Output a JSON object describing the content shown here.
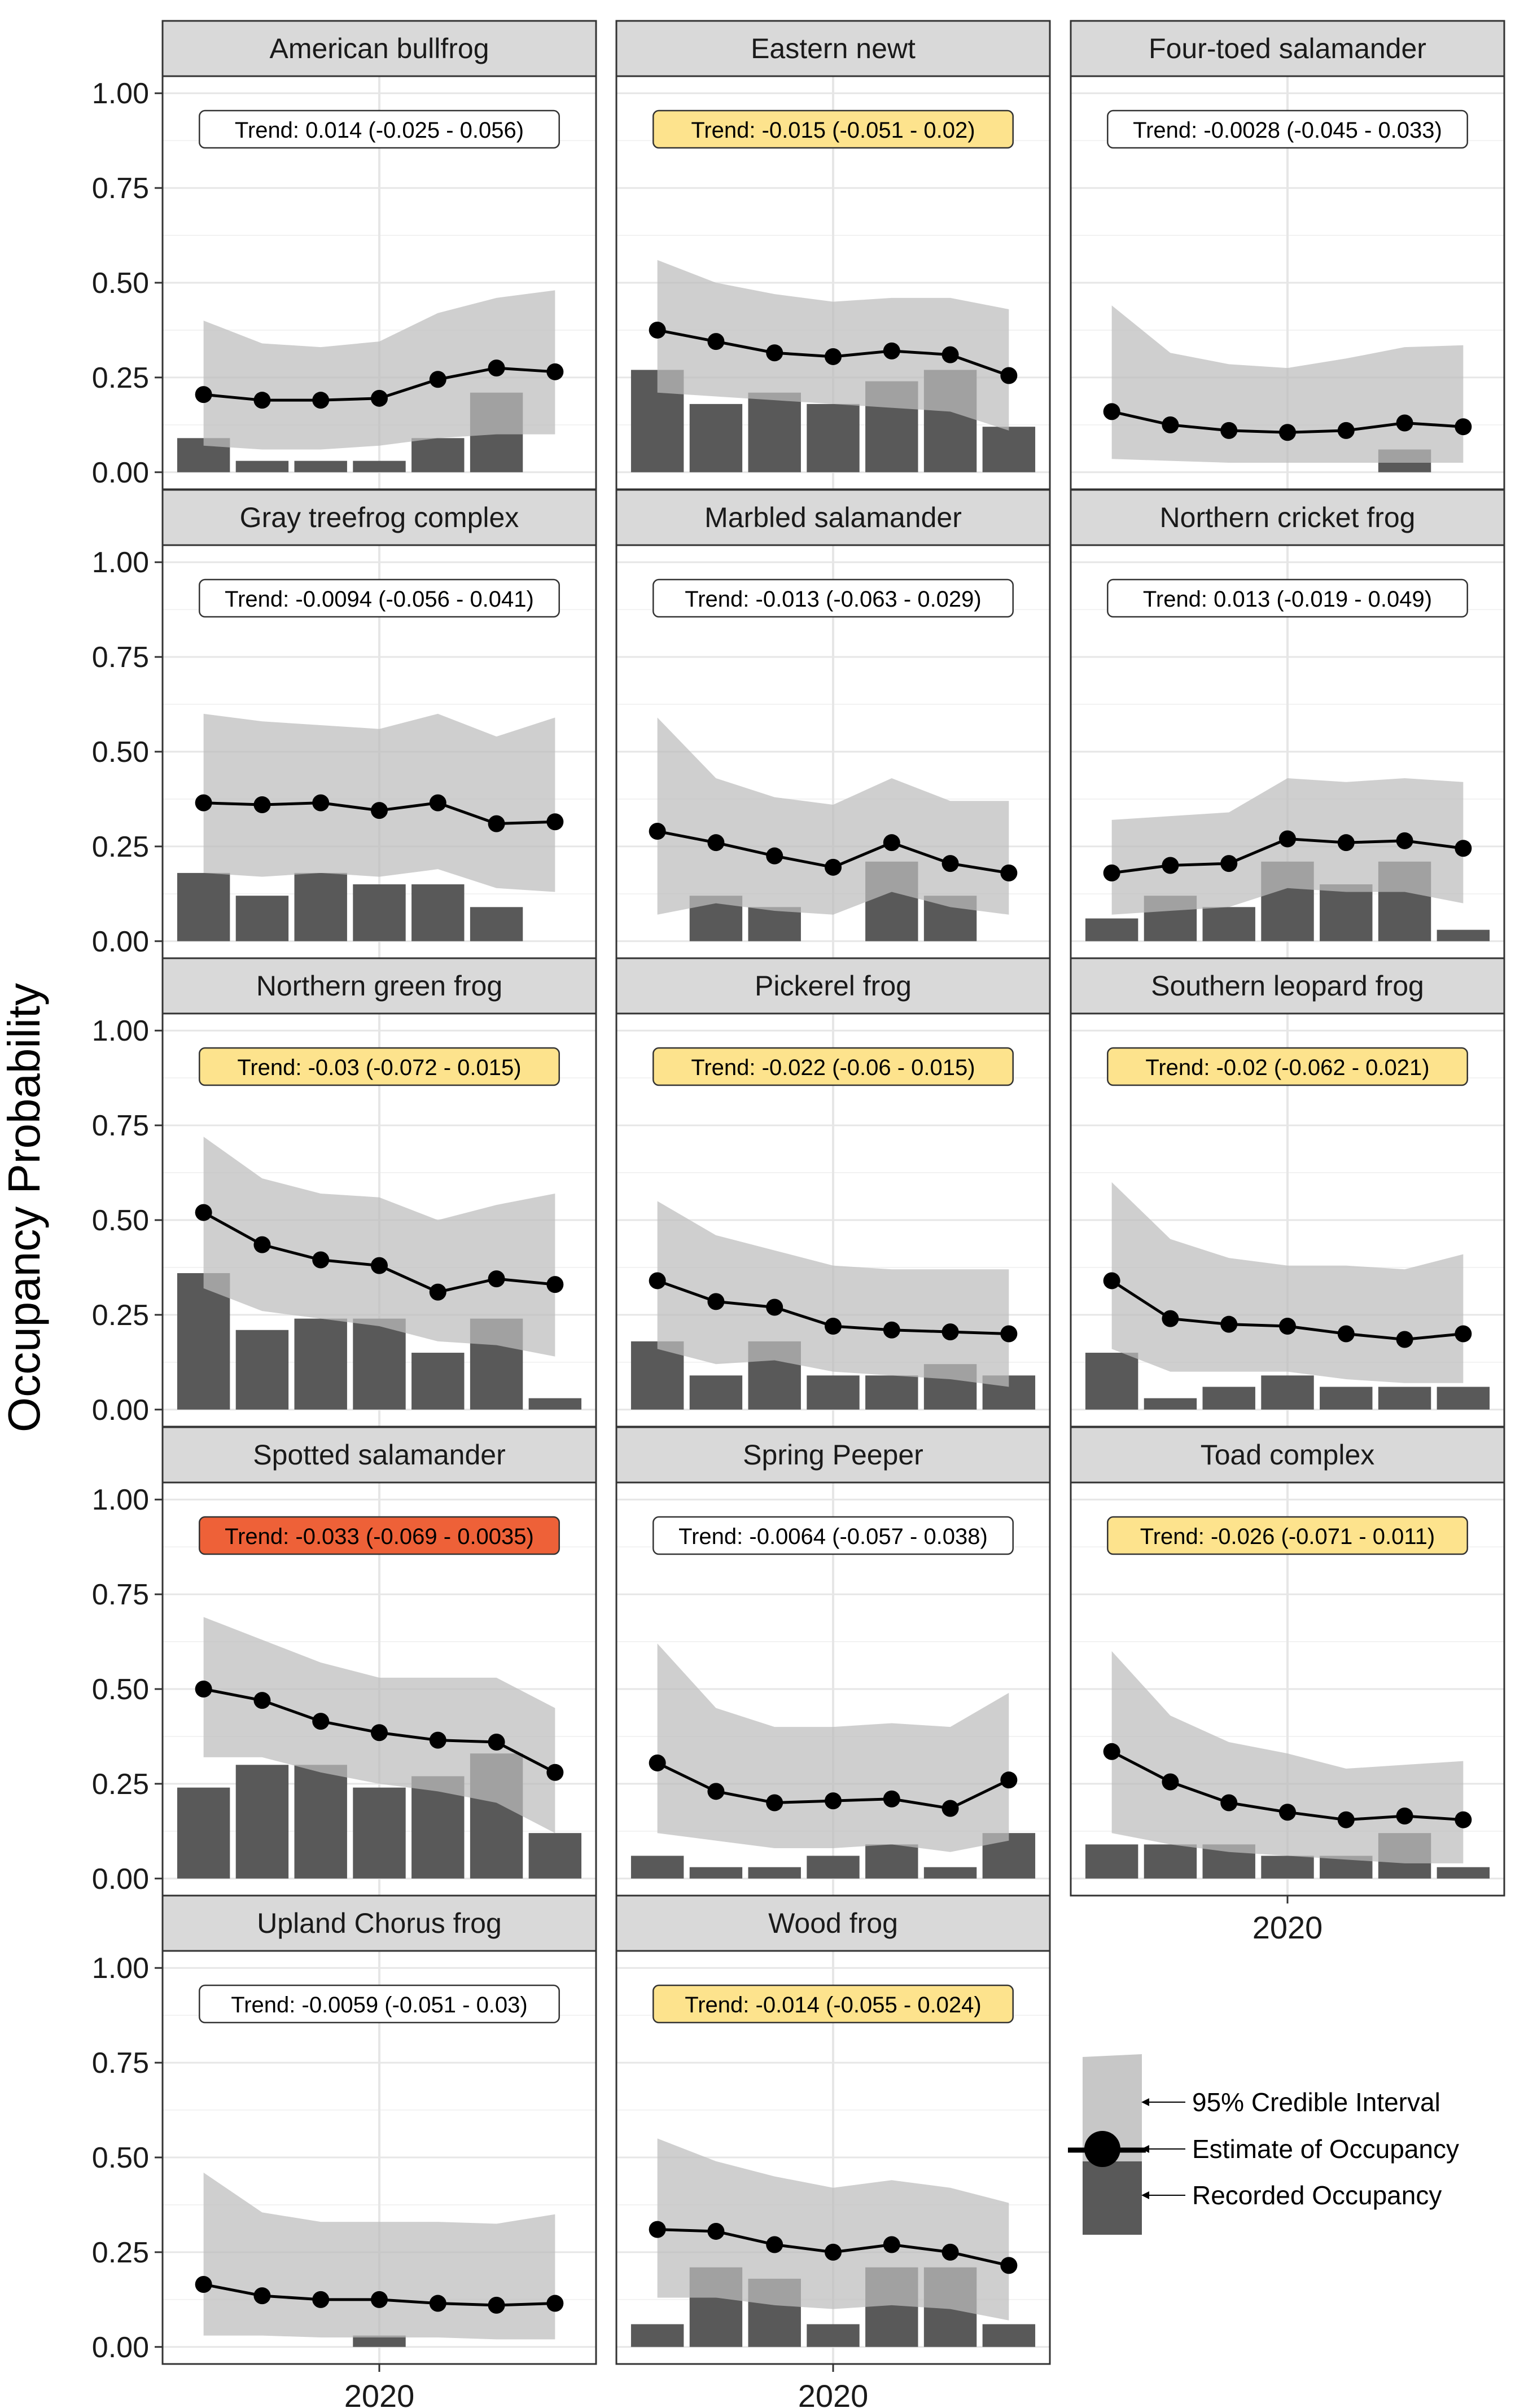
{
  "figure": {
    "ylabel": "Occupancy Probability",
    "xtick_label": "2020",
    "yticks": [
      "0.00",
      "0.25",
      "0.50",
      "0.75",
      "1.00"
    ],
    "colors": {
      "ci_band": "#bdbdbd",
      "bar": "#595959",
      "point_line": "#000000",
      "strip": "#d9d9d9",
      "trend_neutral": "#ffffff",
      "trend_yellow": "#fde38d",
      "trend_red": "#ee6138"
    }
  },
  "legend": {
    "items": [
      {
        "key": "ci",
        "label": "95% Credible Interval"
      },
      {
        "key": "estimate",
        "label": "Estimate of Occupancy"
      },
      {
        "key": "recorded",
        "label": "Recorded Occupancy"
      }
    ]
  },
  "chart_data": [
    {
      "type": "bar+line",
      "title": "American bullfrog",
      "trend_label": "Trend: 0.014 (-0.025 - 0.056)",
      "trend_color": "neutral",
      "ylim": [
        0,
        1
      ],
      "bars": [
        0.09,
        0.03,
        0.03,
        0.03,
        0.09,
        0.21,
        null
      ],
      "estimate": [
        0.205,
        0.19,
        0.19,
        0.195,
        0.245,
        0.275,
        0.265
      ],
      "ci_lower": [
        0.07,
        0.06,
        0.06,
        0.07,
        0.09,
        0.1,
        0.1
      ],
      "ci_upper": [
        0.4,
        0.34,
        0.33,
        0.345,
        0.42,
        0.46,
        0.48
      ]
    },
    {
      "type": "bar+line",
      "title": "Eastern newt",
      "trend_label": "Trend: -0.015 (-0.051 - 0.02)",
      "trend_color": "yellow",
      "ylim": [
        0,
        1
      ],
      "bars": [
        0.27,
        0.18,
        0.21,
        0.18,
        0.24,
        0.27,
        0.12
      ],
      "estimate": [
        0.375,
        0.345,
        0.315,
        0.305,
        0.32,
        0.31,
        0.255
      ],
      "ci_lower": [
        0.21,
        0.2,
        0.19,
        0.18,
        0.17,
        0.16,
        0.11
      ],
      "ci_upper": [
        0.56,
        0.5,
        0.47,
        0.45,
        0.46,
        0.46,
        0.43
      ]
    },
    {
      "type": "bar+line",
      "title": "Four-toed salamander",
      "trend_label": "Trend: -0.0028 (-0.045 - 0.033)",
      "trend_color": "neutral",
      "ylim": [
        0,
        1
      ],
      "bars": [
        null,
        null,
        null,
        null,
        null,
        0.06,
        null
      ],
      "estimate": [
        0.16,
        0.125,
        0.11,
        0.105,
        0.11,
        0.13,
        0.12
      ],
      "ci_lower": [
        0.035,
        0.03,
        0.025,
        0.025,
        0.025,
        0.025,
        0.025
      ],
      "ci_upper": [
        0.44,
        0.315,
        0.285,
        0.275,
        0.3,
        0.33,
        0.335
      ]
    },
    {
      "type": "bar+line",
      "title": "Gray treefrog complex",
      "trend_label": "Trend: -0.0094 (-0.056 - 0.041)",
      "trend_color": "neutral",
      "ylim": [
        0,
        1
      ],
      "bars": [
        0.18,
        0.12,
        0.18,
        0.15,
        0.15,
        0.09,
        null
      ],
      "estimate": [
        0.365,
        0.36,
        0.365,
        0.345,
        0.365,
        0.31,
        0.315
      ],
      "ci_lower": [
        0.18,
        0.17,
        0.18,
        0.17,
        0.19,
        0.14,
        0.13
      ],
      "ci_upper": [
        0.6,
        0.58,
        0.57,
        0.56,
        0.6,
        0.54,
        0.59
      ]
    },
    {
      "type": "bar+line",
      "title": "Marbled salamander",
      "trend_label": "Trend: -0.013 (-0.063 - 0.029)",
      "trend_color": "neutral",
      "ylim": [
        0,
        1
      ],
      "bars": [
        null,
        0.12,
        0.09,
        null,
        0.21,
        0.12,
        null
      ],
      "estimate": [
        0.29,
        0.26,
        0.225,
        0.195,
        0.26,
        0.205,
        0.18
      ],
      "ci_lower": [
        0.07,
        0.1,
        0.08,
        0.07,
        0.13,
        0.09,
        0.07
      ],
      "ci_upper": [
        0.59,
        0.43,
        0.38,
        0.36,
        0.43,
        0.37,
        0.37
      ]
    },
    {
      "type": "bar+line",
      "title": "Northern cricket frog",
      "trend_label": "Trend: 0.013 (-0.019 - 0.049)",
      "trend_color": "neutral",
      "ylim": [
        0,
        1
      ],
      "bars": [
        0.06,
        0.12,
        0.09,
        0.21,
        0.15,
        0.21,
        0.03
      ],
      "estimate": [
        0.18,
        0.2,
        0.205,
        0.27,
        0.26,
        0.265,
        0.245
      ],
      "ci_lower": [
        0.07,
        0.08,
        0.09,
        0.14,
        0.13,
        0.13,
        0.1
      ],
      "ci_upper": [
        0.32,
        0.33,
        0.34,
        0.43,
        0.42,
        0.43,
        0.42
      ]
    },
    {
      "type": "bar+line",
      "title": "Northern green frog",
      "trend_label": "Trend: -0.03 (-0.072 - 0.015)",
      "trend_color": "yellow",
      "ylim": [
        0,
        1
      ],
      "bars": [
        0.36,
        0.21,
        0.24,
        0.24,
        0.15,
        0.24,
        0.03
      ],
      "estimate": [
        0.52,
        0.435,
        0.395,
        0.38,
        0.31,
        0.345,
        0.33
      ],
      "ci_lower": [
        0.32,
        0.26,
        0.24,
        0.22,
        0.18,
        0.17,
        0.14
      ],
      "ci_upper": [
        0.72,
        0.61,
        0.57,
        0.56,
        0.5,
        0.54,
        0.57
      ]
    },
    {
      "type": "bar+line",
      "title": "Pickerel frog",
      "trend_label": "Trend: -0.022 (-0.06 - 0.015)",
      "trend_color": "yellow",
      "ylim": [
        0,
        1
      ],
      "bars": [
        0.18,
        0.09,
        0.18,
        0.09,
        0.09,
        0.12,
        0.09
      ],
      "estimate": [
        0.34,
        0.285,
        0.27,
        0.22,
        0.21,
        0.205,
        0.2
      ],
      "ci_lower": [
        0.16,
        0.12,
        0.13,
        0.1,
        0.09,
        0.08,
        0.06
      ],
      "ci_upper": [
        0.55,
        0.46,
        0.42,
        0.38,
        0.37,
        0.37,
        0.37
      ]
    },
    {
      "type": "bar+line",
      "title": "Southern leopard frog",
      "trend_label": "Trend: -0.02 (-0.062 - 0.021)",
      "trend_color": "yellow",
      "ylim": [
        0,
        1
      ],
      "bars": [
        0.15,
        0.03,
        0.06,
        0.09,
        0.06,
        0.06,
        0.06
      ],
      "estimate": [
        0.34,
        0.24,
        0.225,
        0.22,
        0.2,
        0.185,
        0.2
      ],
      "ci_lower": [
        0.16,
        0.1,
        0.1,
        0.1,
        0.08,
        0.07,
        0.07
      ],
      "ci_upper": [
        0.6,
        0.45,
        0.4,
        0.38,
        0.38,
        0.37,
        0.41
      ]
    },
    {
      "type": "bar+line",
      "title": "Spotted salamander",
      "trend_label": "Trend: -0.033 (-0.069 - 0.0035)",
      "trend_color": "red",
      "ylim": [
        0,
        1
      ],
      "bars": [
        0.24,
        0.3,
        0.3,
        0.24,
        0.27,
        0.33,
        0.12
      ],
      "estimate": [
        0.5,
        0.47,
        0.415,
        0.385,
        0.365,
        0.36,
        0.28
      ],
      "ci_lower": [
        0.32,
        0.32,
        0.28,
        0.25,
        0.23,
        0.2,
        0.12
      ],
      "ci_upper": [
        0.69,
        0.63,
        0.57,
        0.53,
        0.53,
        0.53,
        0.45
      ]
    },
    {
      "type": "bar+line",
      "title": "Spring Peeper",
      "trend_label": "Trend: -0.0064 (-0.057 - 0.038)",
      "trend_color": "neutral",
      "ylim": [
        0,
        1
      ],
      "bars": [
        0.06,
        0.03,
        0.03,
        0.06,
        0.09,
        0.03,
        0.12
      ],
      "estimate": [
        0.305,
        0.23,
        0.2,
        0.205,
        0.21,
        0.185,
        0.26
      ],
      "ci_lower": [
        0.12,
        0.1,
        0.08,
        0.08,
        0.09,
        0.07,
        0.1
      ],
      "ci_upper": [
        0.62,
        0.45,
        0.4,
        0.4,
        0.41,
        0.4,
        0.49
      ]
    },
    {
      "type": "bar+line",
      "title": "Toad complex",
      "trend_label": "Trend: -0.026 (-0.071 - 0.011)",
      "trend_color": "yellow",
      "ylim": [
        0,
        1
      ],
      "bars": [
        0.09,
        0.09,
        0.09,
        0.06,
        0.06,
        0.12,
        0.03
      ],
      "estimate": [
        0.335,
        0.255,
        0.2,
        0.175,
        0.155,
        0.165,
        0.155
      ],
      "ci_lower": [
        0.12,
        0.09,
        0.07,
        0.06,
        0.05,
        0.04,
        0.04
      ],
      "ci_upper": [
        0.6,
        0.43,
        0.36,
        0.33,
        0.29,
        0.3,
        0.31
      ]
    },
    {
      "type": "bar+line",
      "title": "Upland Chorus frog",
      "trend_label": "Trend: -0.0059 (-0.051 - 0.03)",
      "trend_color": "neutral",
      "ylim": [
        0,
        1
      ],
      "bars": [
        null,
        null,
        null,
        0.03,
        null,
        null,
        null
      ],
      "estimate": [
        0.165,
        0.135,
        0.125,
        0.125,
        0.115,
        0.11,
        0.115
      ],
      "ci_lower": [
        0.03,
        0.03,
        0.025,
        0.025,
        0.025,
        0.02,
        0.02
      ],
      "ci_upper": [
        0.46,
        0.355,
        0.33,
        0.33,
        0.33,
        0.325,
        0.35
      ]
    },
    {
      "type": "bar+line",
      "title": "Wood frog",
      "trend_label": "Trend: -0.014 (-0.055 - 0.024)",
      "trend_color": "yellow",
      "ylim": [
        0,
        1
      ],
      "bars": [
        0.06,
        0.21,
        0.18,
        0.06,
        0.21,
        0.21,
        0.06
      ],
      "estimate": [
        0.31,
        0.305,
        0.27,
        0.25,
        0.27,
        0.25,
        0.215
      ],
      "ci_lower": [
        0.13,
        0.13,
        0.11,
        0.1,
        0.11,
        0.1,
        0.07
      ],
      "ci_upper": [
        0.55,
        0.49,
        0.45,
        0.42,
        0.44,
        0.42,
        0.38
      ]
    }
  ]
}
